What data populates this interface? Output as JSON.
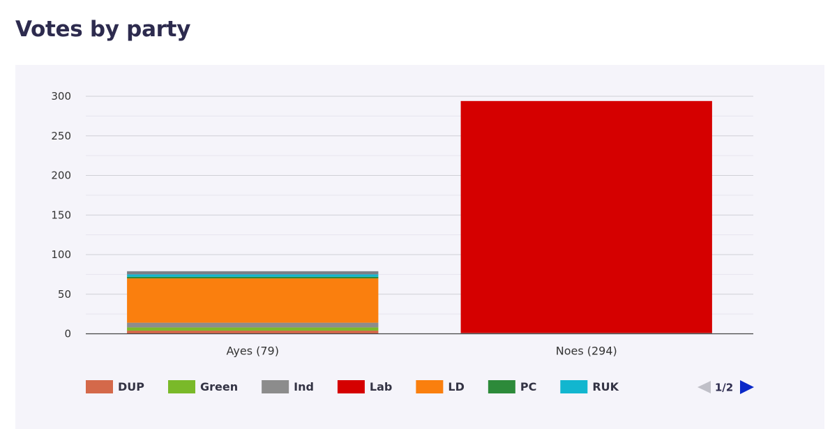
{
  "page_title": "Votes by party",
  "chart_data": {
    "type": "bar",
    "stacked": true,
    "categories": [
      "Ayes (79)",
      "Noes (294)"
    ],
    "series": [
      {
        "name": "DUP",
        "color": "#d4694a",
        "values": [
          4,
          0
        ]
      },
      {
        "name": "Green",
        "color": "#7ab929",
        "values": [
          4,
          0
        ]
      },
      {
        "name": "Ind",
        "color": "#8c8c8c",
        "values": [
          6,
          1
        ]
      },
      {
        "name": "Lab",
        "color": "#d50000",
        "values": [
          0,
          293
        ]
      },
      {
        "name": "LD",
        "color": "#fa7f0e",
        "values": [
          56,
          0
        ]
      },
      {
        "name": "PC",
        "color": "#2d8a3a",
        "values": [
          2,
          0
        ]
      },
      {
        "name": "RUK",
        "color": "#12b6cf",
        "values": [
          3,
          0
        ]
      },
      {
        "name": "",
        "color": "#7a8088",
        "values": [
          4,
          0
        ]
      }
    ],
    "y_ticks": [
      0,
      50,
      100,
      150,
      200,
      250,
      300
    ],
    "ylim": [
      0,
      300
    ],
    "grid": true,
    "legend_position": "bottom",
    "legend_items": [
      "DUP",
      "Green",
      "Ind",
      "Lab",
      "LD",
      "PC",
      "RUK"
    ]
  },
  "legend_pager": {
    "page_text": "1/2",
    "prev_icon": "triangle-left-icon",
    "next_icon": "triangle-right-icon",
    "prev_color": "#c0c0c8",
    "next_color": "#0a28c8"
  }
}
